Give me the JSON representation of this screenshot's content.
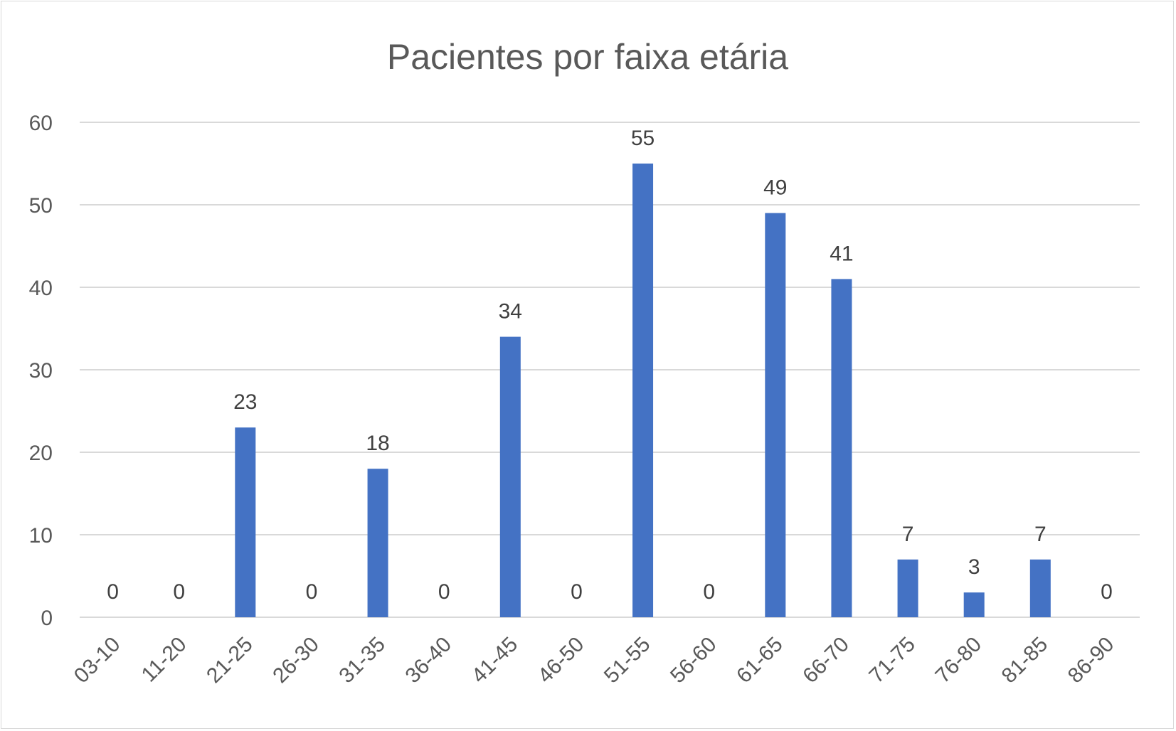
{
  "chart_data": {
    "type": "bar",
    "title": "Pacientes por faixa etária",
    "xlabel": "",
    "ylabel": "",
    "categories": [
      "03-10",
      "11-20",
      "21-25",
      "26-30",
      "31-35",
      "36-40",
      "41-45",
      "46-50",
      "51-55",
      "56-60",
      "61-65",
      "66-70",
      "71-75",
      "76-80",
      "81-85",
      "86-90"
    ],
    "values": [
      0,
      0,
      23,
      0,
      18,
      0,
      34,
      0,
      55,
      0,
      49,
      41,
      7,
      3,
      7,
      0
    ],
    "ylim": [
      0,
      60
    ],
    "yticks": [
      0,
      10,
      20,
      30,
      40,
      50,
      60
    ],
    "grid": true,
    "data_labels": true,
    "legend": "none",
    "bar_color": "#4472C4",
    "gridline_color": "#d9d9d9",
    "axis_label_color": "#595959"
  }
}
